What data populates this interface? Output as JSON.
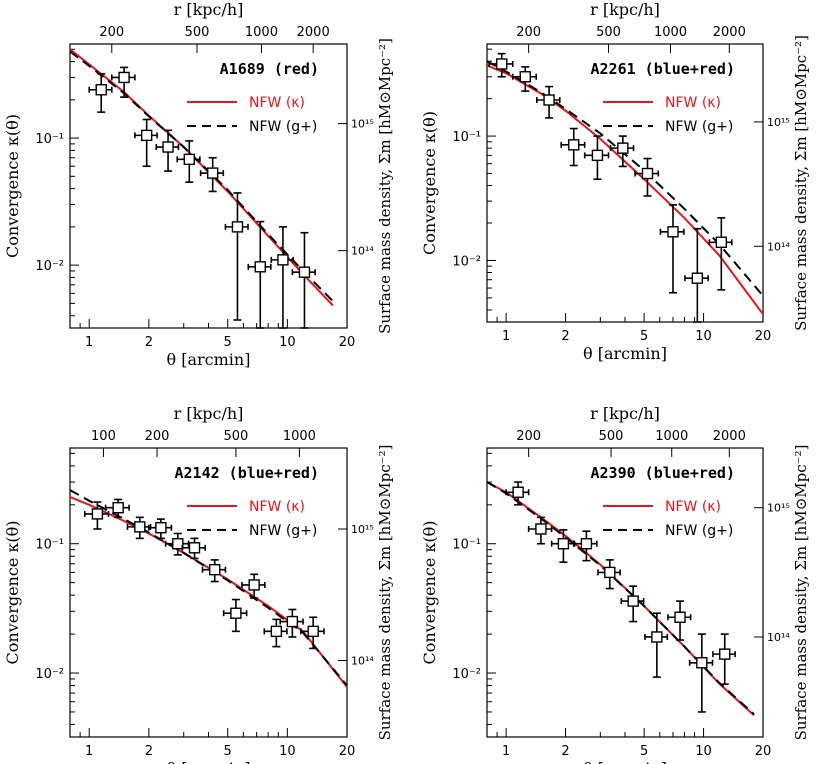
{
  "figure": {
    "colors": {
      "nfw_kappa": "#e8141c",
      "nfw_gplus": "#000000",
      "points": "#000000"
    }
  },
  "chart_data": [
    {
      "type": "scatter",
      "title": "A1689 (red)",
      "xlabel": "θ [arcmin]",
      "ylabel": "Convergence κ(θ)",
      "top_xlabel": "r [kpc/h]",
      "right_ylabel": "Surface mass density, Σm [hM⊙Mpc⁻²]",
      "xscale": "log",
      "yscale": "log",
      "xlim": [
        0.8,
        20
      ],
      "ylim": [
        0.0032,
        0.55
      ],
      "x_ticks": [
        1,
        2,
        5,
        10,
        20
      ],
      "x_tick_labels": [
        "1",
        "2",
        "5",
        "10",
        "20"
      ],
      "y_ticks": [
        0.01,
        0.1
      ],
      "y_tick_labels": [
        "10⁻²",
        "10⁻¹"
      ],
      "top_ticks": [
        {
          "theta": 1.3,
          "label": "200"
        },
        {
          "theta": 3.5,
          "label": "500"
        },
        {
          "theta": 7.4,
          "label": "1000"
        },
        {
          "theta": 13.5,
          "label": "2000"
        }
      ],
      "right_ticks": [
        {
          "kappa": 0.13,
          "label": "10¹⁵"
        },
        {
          "kappa": 0.013,
          "label": "10¹⁴"
        }
      ],
      "legend": [
        "NFW (κ)",
        "NFW (g+)"
      ],
      "legend_position": "top-right",
      "series": [
        {
          "name": "NFW (κ)",
          "style": "solid",
          "color": "red",
          "x": [
            0.8,
            1,
            1.5,
            2,
            3,
            5,
            8,
            12,
            17
          ],
          "y": [
            0.5,
            0.38,
            0.23,
            0.15,
            0.085,
            0.038,
            0.017,
            0.0085,
            0.0048
          ]
        },
        {
          "name": "NFW (g+)",
          "style": "dashed",
          "color": "black",
          "x": [
            0.8,
            1,
            1.5,
            2,
            3,
            5,
            8,
            12,
            17
          ],
          "y": [
            0.48,
            0.37,
            0.225,
            0.148,
            0.085,
            0.039,
            0.0175,
            0.009,
            0.0052
          ]
        },
        {
          "name": "data",
          "style": "points",
          "x": [
            1.15,
            1.5,
            1.95,
            2.5,
            3.2,
            4.2,
            5.6,
            7.3,
            9.5,
            12.2
          ],
          "xerr": [
            0.15,
            0.2,
            0.25,
            0.32,
            0.42,
            0.55,
            0.73,
            0.95,
            1.2,
            1.6
          ],
          "y": [
            0.24,
            0.3,
            0.105,
            0.085,
            0.068,
            0.053,
            0.02,
            0.0097,
            0.011,
            0.0088
          ],
          "ylo": [
            0.16,
            0.21,
            0.06,
            0.055,
            0.045,
            0.038,
            0.0037,
            0.0032,
            0.0032,
            0.0032
          ],
          "yhi": [
            0.32,
            0.36,
            0.14,
            0.115,
            0.095,
            0.07,
            0.037,
            0.022,
            0.02,
            0.018
          ]
        }
      ]
    },
    {
      "type": "scatter",
      "title": "A2261 (blue+red)",
      "xlabel": "θ [arcmin]",
      "ylabel": "Convergence κ(θ)",
      "top_xlabel": "r [kpc/h]",
      "right_ylabel": "Surface mass density, Σm [hM⊙Mpc⁻²]",
      "xscale": "log",
      "yscale": "log",
      "xlim": [
        0.8,
        20
      ],
      "ylim": [
        0.0032,
        0.55
      ],
      "x_ticks": [
        1,
        2,
        5,
        10,
        20
      ],
      "x_tick_labels": [
        "1",
        "2",
        "5",
        "10",
        "20"
      ],
      "y_ticks": [
        0.01,
        0.1
      ],
      "y_tick_labels": [
        "10⁻²",
        "10⁻¹"
      ],
      "top_ticks": [
        {
          "theta": 1.3,
          "label": "200"
        },
        {
          "theta": 3.3,
          "label": "500"
        },
        {
          "theta": 6.8,
          "label": "1000"
        },
        {
          "theta": 13.5,
          "label": "2000"
        }
      ],
      "right_ticks": [
        {
          "kappa": 0.13,
          "label": "10¹⁵"
        },
        {
          "kappa": 0.013,
          "label": "10¹⁴"
        }
      ],
      "legend": [
        "NFW (κ)",
        "NFW (g+)"
      ],
      "legend_position": "top-right",
      "series": [
        {
          "name": "NFW (κ)",
          "style": "solid",
          "color": "red",
          "x": [
            0.8,
            1,
            1.5,
            2,
            3,
            5,
            8,
            12,
            20
          ],
          "y": [
            0.37,
            0.32,
            0.22,
            0.16,
            0.095,
            0.045,
            0.022,
            0.011,
            0.0037
          ]
        },
        {
          "name": "NFW (g+)",
          "style": "dashed",
          "color": "black",
          "x": [
            0.8,
            1,
            1.5,
            2,
            3,
            5,
            8,
            12,
            20
          ],
          "y": [
            0.4,
            0.33,
            0.225,
            0.165,
            0.105,
            0.053,
            0.026,
            0.0135,
            0.0052
          ]
        },
        {
          "name": "data",
          "style": "points",
          "x": [
            0.95,
            1.25,
            1.65,
            2.2,
            2.9,
            3.9,
            5.2,
            7,
            9.3,
            12.3
          ],
          "xerr": [
            0.13,
            0.17,
            0.22,
            0.3,
            0.4,
            0.52,
            0.7,
            0.95,
            1.25,
            1.6
          ],
          "y": [
            0.38,
            0.3,
            0.195,
            0.085,
            0.07,
            0.08,
            0.05,
            0.017,
            0.0072,
            0.014
          ],
          "ylo": [
            0.3,
            0.23,
            0.14,
            0.058,
            0.045,
            0.057,
            0.033,
            0.0055,
            0.0032,
            0.0058
          ],
          "yhi": [
            0.46,
            0.36,
            0.25,
            0.115,
            0.1,
            0.1,
            0.066,
            0.028,
            0.018,
            0.022
          ]
        }
      ]
    },
    {
      "type": "scatter",
      "title": "A2142 (blue+red)",
      "xlabel": "θ [arcmin]",
      "ylabel": "Convergence κ(θ)",
      "top_xlabel": "r [kpc/h]",
      "right_ylabel": "Surface mass density, Σm [hM⊙Mpc⁻²]",
      "xscale": "log",
      "yscale": "log",
      "xlim": [
        0.8,
        20
      ],
      "ylim": [
        0.0032,
        0.55
      ],
      "x_ticks": [
        1,
        2,
        5,
        10,
        20
      ],
      "x_tick_labels": [
        "1",
        "2",
        "5",
        "10",
        "20"
      ],
      "y_ticks": [
        0.01,
        0.1
      ],
      "y_tick_labels": [
        "10⁻²",
        "10⁻¹"
      ],
      "top_ticks": [
        {
          "theta": 1.18,
          "label": "100"
        },
        {
          "theta": 2.2,
          "label": "200"
        },
        {
          "theta": 5.5,
          "label": "500"
        },
        {
          "theta": 11.5,
          "label": "1000"
        }
      ],
      "right_ticks": [
        {
          "kappa": 0.13,
          "label": "10¹⁵"
        },
        {
          "kappa": 0.0125,
          "label": "10¹⁴"
        }
      ],
      "legend": [
        "NFW (κ)",
        "NFW (g+)"
      ],
      "legend_position": "top-right",
      "series": [
        {
          "name": "NFW (κ)",
          "style": "solid",
          "color": "red",
          "x": [
            0.8,
            1,
            1.5,
            2,
            3,
            5,
            8,
            12,
            20
          ],
          "y": [
            0.23,
            0.2,
            0.15,
            0.12,
            0.085,
            0.053,
            0.033,
            0.021,
            0.0078
          ]
        },
        {
          "name": "NFW (g+)",
          "style": "dashed",
          "color": "black",
          "x": [
            0.8,
            1,
            1.5,
            2,
            3,
            5,
            8,
            12,
            20
          ],
          "y": [
            0.26,
            0.215,
            0.155,
            0.122,
            0.085,
            0.052,
            0.032,
            0.0205,
            0.008
          ]
        },
        {
          "name": "data",
          "style": "points",
          "x": [
            1.1,
            1.4,
            1.8,
            2.3,
            2.8,
            3.4,
            4.3,
            5.5,
            6.8,
            8.8,
            10.6,
            13.5
          ],
          "xerr": [
            0.15,
            0.19,
            0.24,
            0.3,
            0.37,
            0.45,
            0.57,
            0.73,
            0.9,
            1.15,
            1.4,
            1.8
          ],
          "y": [
            0.17,
            0.19,
            0.135,
            0.133,
            0.1,
            0.093,
            0.063,
            0.029,
            0.048,
            0.021,
            0.025,
            0.021
          ],
          "ylo": [
            0.13,
            0.16,
            0.11,
            0.11,
            0.082,
            0.077,
            0.051,
            0.021,
            0.038,
            0.016,
            0.019,
            0.0155
          ],
          "yhi": [
            0.21,
            0.22,
            0.16,
            0.155,
            0.12,
            0.11,
            0.075,
            0.037,
            0.058,
            0.026,
            0.031,
            0.027
          ]
        }
      ]
    },
    {
      "type": "scatter",
      "title": "A2390 (blue+red)",
      "xlabel": "θ [arcmin]",
      "ylabel": "Convergence κ(θ)",
      "top_xlabel": "r [kpc/h]",
      "right_ylabel": "Surface mass density, Σm [hM⊙Mpc⁻²]",
      "xscale": "log",
      "yscale": "log",
      "xlim": [
        0.8,
        20
      ],
      "ylim": [
        0.0032,
        0.55
      ],
      "x_ticks": [
        1,
        2,
        5,
        10,
        20
      ],
      "x_tick_labels": [
        "1",
        "2",
        "5",
        "10",
        "20"
      ],
      "y_ticks": [
        0.01,
        0.1
      ],
      "y_tick_labels": [
        "10⁻²",
        "10⁻¹"
      ],
      "top_ticks": [
        {
          "theta": 1.3,
          "label": "200"
        },
        {
          "theta": 3.4,
          "label": "500"
        },
        {
          "theta": 6.9,
          "label": "1000"
        },
        {
          "theta": 13.5,
          "label": "2000"
        }
      ],
      "right_ticks": [
        {
          "kappa": 0.19,
          "label": "10¹⁵"
        },
        {
          "kappa": 0.019,
          "label": "10¹⁴"
        }
      ],
      "legend": [
        "NFW (κ)",
        "NFW (g+)"
      ],
      "legend_position": "top-right",
      "series": [
        {
          "name": "NFW (κ)",
          "style": "solid",
          "color": "red",
          "x": [
            0.8,
            1,
            1.5,
            2,
            3,
            5,
            8,
            12,
            18
          ],
          "y": [
            0.3,
            0.25,
            0.16,
            0.115,
            0.069,
            0.033,
            0.016,
            0.0083,
            0.0047
          ]
        },
        {
          "name": "NFW (g+)",
          "style": "dashed",
          "color": "black",
          "x": [
            0.8,
            1,
            1.5,
            2,
            3,
            5,
            8,
            12,
            18
          ],
          "y": [
            0.3,
            0.245,
            0.157,
            0.112,
            0.068,
            0.033,
            0.016,
            0.0084,
            0.0048
          ]
        },
        {
          "name": "data",
          "style": "points",
          "x": [
            1.15,
            1.5,
            1.95,
            2.55,
            3.35,
            4.4,
            5.8,
            7.6,
            9.8,
            12.8
          ],
          "xerr": [
            0.15,
            0.2,
            0.25,
            0.33,
            0.43,
            0.57,
            0.75,
            1,
            1.3,
            1.65
          ],
          "y": [
            0.25,
            0.13,
            0.1,
            0.1,
            0.06,
            0.036,
            0.019,
            0.027,
            0.012,
            0.014
          ],
          "ylo": [
            0.2,
            0.1,
            0.072,
            0.074,
            0.045,
            0.025,
            0.0093,
            0.018,
            0.005,
            0.0082
          ],
          "yhi": [
            0.3,
            0.16,
            0.128,
            0.125,
            0.075,
            0.047,
            0.029,
            0.036,
            0.02,
            0.02
          ]
        }
      ]
    }
  ]
}
